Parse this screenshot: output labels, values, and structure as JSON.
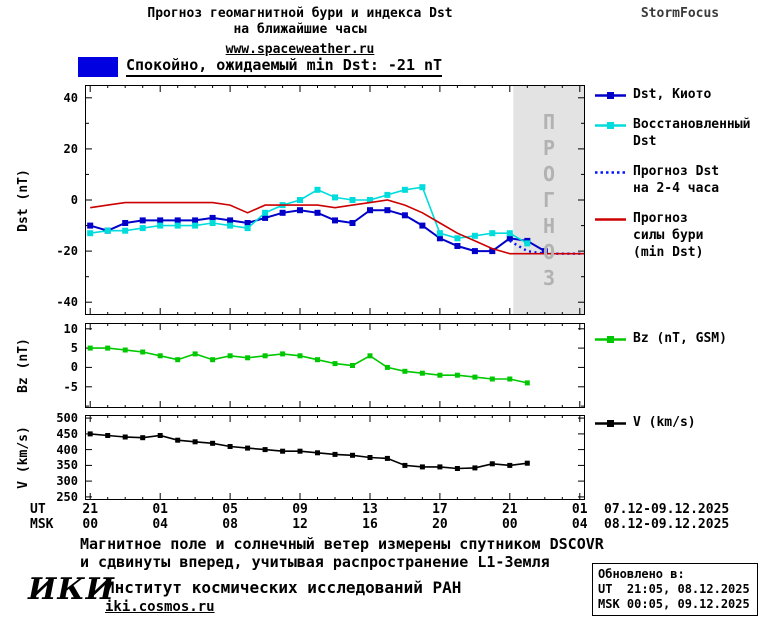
{
  "header": {
    "title_line1": "Прогноз геомагнитной бури и индекса Dst",
    "title_line2": "на ближайшие часы",
    "link": "www.spaceweather.ru",
    "brand": "StormFocus"
  },
  "banner": {
    "label": "Спокойно, ожидаемый min Dst: -21 nT",
    "swatch_color": "#0000e0"
  },
  "chart_data": {
    "type": "line",
    "title": "Прогноз геомагнитной бури и индекса Dst на ближайшие часы",
    "legend_position": "right",
    "grid": false,
    "x_axis": {
      "unit_rows": [
        "UT",
        "MSK"
      ],
      "tick_hours": [
        0,
        4,
        8,
        12,
        16,
        20,
        24,
        28
      ],
      "tick_labels_ut": [
        "21",
        "01",
        "05",
        "09",
        "13",
        "17",
        "21",
        "01"
      ],
      "tick_labels_msk": [
        "00",
        "04",
        "08",
        "12",
        "16",
        "20",
        "00",
        "04"
      ],
      "range_ut": "07.12-09.12.2025",
      "range_msk": "08.12-09.12.2025",
      "xlim": [
        -0.3,
        28.3
      ]
    },
    "forecast_region": {
      "from_hour": 24.2,
      "to_hour": 28.3,
      "label": "ПРОГНОЗ",
      "fill": "#e3e3e3"
    },
    "panels": [
      {
        "id": "dst",
        "ylabel": "Dst (nT)",
        "ylim": [
          -45,
          45
        ],
        "yticks": [
          40,
          20,
          0,
          -20,
          -40
        ],
        "yminor": [
          30,
          10,
          -10,
          -30
        ],
        "shade": true,
        "series": [
          {
            "name": "Dst, Киото",
            "color": "#0000c8",
            "style": "solid",
            "marker": true,
            "width": 2,
            "x": [
              0,
              1,
              2,
              3,
              4,
              5,
              6,
              7,
              8,
              9,
              10,
              11,
              12,
              13,
              14,
              15,
              16,
              17,
              18,
              19,
              20,
              21,
              22,
              23,
              24,
              25,
              26
            ],
            "y": [
              -10,
              -12,
              -9,
              -8,
              -8,
              -8,
              -8,
              -7,
              -8,
              -9,
              -7,
              -5,
              -4,
              -5,
              -8,
              -9,
              -4,
              -4,
              -6,
              -10,
              -15,
              -18,
              -20,
              -20,
              -15,
              -16,
              -20
            ]
          },
          {
            "name": "Восстановленный Dst",
            "color": "#00dcdc",
            "style": "solid",
            "marker": true,
            "width": 1.6,
            "x": [
              0,
              1,
              2,
              3,
              4,
              5,
              6,
              7,
              8,
              9,
              10,
              11,
              12,
              13,
              14,
              15,
              16,
              17,
              18,
              19,
              20,
              21,
              22,
              23,
              24,
              25
            ],
            "y": [
              -13,
              -12,
              -12,
              -11,
              -10,
              -10,
              -10,
              -9,
              -10,
              -11,
              -5,
              -2,
              0,
              4,
              1,
              0,
              0,
              2,
              4,
              5,
              -13,
              -15,
              -14,
              -13,
              -13,
              -17
            ]
          },
          {
            "name": "Прогноз Dst на 2-4 часа",
            "color": "#0014ff",
            "style": "dotted",
            "marker": false,
            "width": 2.4,
            "x": [
              24,
              25,
              26,
              27,
              28.3
            ],
            "y": [
              -16,
              -20,
              -21,
              -21,
              -21
            ]
          },
          {
            "name": "Прогноз силы бури (min Dst)",
            "color": "#cd0000",
            "style": "solid",
            "marker": false,
            "width": 1.6,
            "x": [
              0,
              1,
              2,
              3,
              4,
              5,
              6,
              7,
              8,
              9,
              10,
              11,
              12,
              13,
              14,
              15,
              16,
              17,
              18,
              19,
              20,
              21,
              22,
              23,
              24,
              25,
              26,
              27,
              28.3
            ],
            "y": [
              -3,
              -2,
              -1,
              -1,
              -1,
              -1,
              -1,
              -1,
              -2,
              -5,
              -2,
              -2,
              -2,
              -2,
              -3,
              -2,
              -1,
              0,
              -2,
              -5,
              -9,
              -13,
              -16,
              -19,
              -21,
              -21,
              -21,
              -21,
              -21
            ]
          }
        ]
      },
      {
        "id": "bz",
        "ylabel": "Bz (nT)",
        "ylim": [
          -10.5,
          11.5
        ],
        "yticks": [
          10,
          5,
          0,
          -5
        ],
        "yminor": [
          -10
        ],
        "shade": false,
        "series": [
          {
            "name": "Bz (nT, GSM)",
            "color": "#00c800",
            "style": "solid",
            "marker": true,
            "width": 1.6,
            "x": [
              0,
              1,
              2,
              3,
              4,
              5,
              6,
              7,
              8,
              9,
              10,
              11,
              12,
              13,
              14,
              15,
              16,
              17,
              18,
              19,
              20,
              21,
              22,
              23,
              24,
              25
            ],
            "y": [
              5,
              5,
              4.5,
              4,
              3,
              2,
              3.5,
              2,
              3,
              2.5,
              3,
              3.5,
              3,
              2,
              1,
              0.5,
              3,
              0,
              -1,
              -1.5,
              -2,
              -2,
              -2.5,
              -3,
              -3,
              -4
            ]
          }
        ]
      },
      {
        "id": "v",
        "ylabel": "V (km/s)",
        "ylim": [
          240,
          510
        ],
        "yticks": [
          500,
          450,
          400,
          350,
          300,
          250
        ],
        "yminor": [],
        "shade": false,
        "series": [
          {
            "name": "V (km/s)",
            "color": "#000000",
            "style": "solid",
            "marker": true,
            "width": 1.6,
            "x": [
              0,
              1,
              2,
              3,
              4,
              5,
              6,
              7,
              8,
              9,
              10,
              11,
              12,
              13,
              14,
              15,
              16,
              17,
              18,
              19,
              20,
              21,
              22,
              23,
              24,
              25
            ],
            "y": [
              450,
              445,
              440,
              438,
              445,
              430,
              425,
              420,
              410,
              405,
              400,
              395,
              395,
              390,
              385,
              382,
              375,
              372,
              350,
              345,
              345,
              340,
              342,
              355,
              350,
              357
            ]
          }
        ]
      }
    ]
  },
  "legend": {
    "dst": [
      {
        "label_lines": [
          "Dst, Киото"
        ],
        "color": "#0000c8",
        "style": "solid",
        "marker": true
      },
      {
        "label_lines": [
          "Восстановленный",
          "Dst"
        ],
        "color": "#00dcdc",
        "style": "solid",
        "marker": true
      },
      {
        "label_lines": [
          "Прогноз Dst",
          "на 2-4 часа"
        ],
        "color": "#0014ff",
        "style": "dotted",
        "marker": false
      },
      {
        "label_lines": [
          "Прогноз",
          "силы бури",
          "(min Dst)"
        ],
        "color": "#cd0000",
        "style": "solid",
        "marker": false
      }
    ],
    "bz": [
      {
        "label_lines": [
          "Bz (nT, GSM)"
        ],
        "color": "#00c800",
        "style": "solid",
        "marker": true
      }
    ],
    "v": [
      {
        "label_lines": [
          "V (km/s)"
        ],
        "color": "#000000",
        "style": "solid",
        "marker": true
      }
    ]
  },
  "footer": {
    "note_line1": "Магнитное поле и солнечный ветер измерены спутником DSCOVR",
    "note_line2": "и сдвинуты вперед, учитывая распространение L1-Земля",
    "logo": "ИКИ",
    "institute": "Институт космических исследований РАН",
    "site": "iki.cosmos.ru",
    "updated_title": "Обновлено в:",
    "updated_ut": "UT  21:05, 08.12.2025",
    "updated_msk": "MSK 00:05, 09.12.2025"
  }
}
